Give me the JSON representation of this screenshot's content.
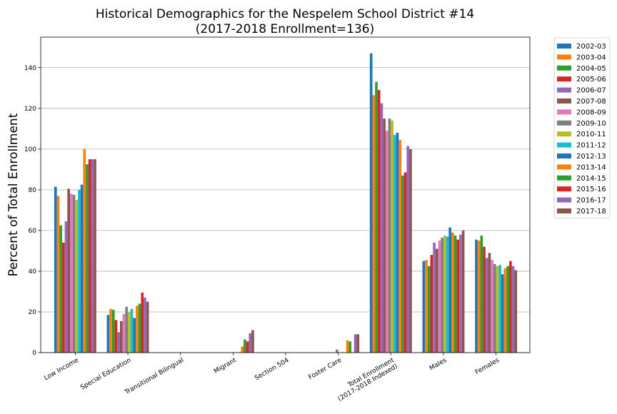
{
  "chart_data": {
    "type": "bar",
    "title": "Historical Demographics for the Nespelem School District #14",
    "subtitle": "(2017-2018 Enrollment=136)",
    "xlabel": "",
    "ylabel": "Percent of Total Enrollment",
    "ylim": [
      0,
      155
    ],
    "yticks": [
      "0",
      "20",
      "40",
      "60",
      "80",
      "100",
      "120",
      "140"
    ],
    "grid": "horizontal",
    "legend_position": "outside-right",
    "categories": [
      "Low Income",
      "Special Education",
      "Transitional Bilingual",
      "Migrant",
      "Section 504",
      "Foster Care",
      "Total Enrollment\n(2017-2018 Indexed)",
      "Males",
      "Females"
    ],
    "series": [
      {
        "name": "2002-03",
        "color": "#1f77b4",
        "values": [
          81.5,
          18.5,
          0,
          0,
          0,
          0,
          147,
          45,
          55.5
        ]
      },
      {
        "name": "2003-04",
        "color": "#ff7f0e",
        "values": [
          77,
          21.5,
          0,
          0,
          0,
          0,
          126.5,
          45.5,
          55
        ]
      },
      {
        "name": "2004-05",
        "color": "#2ca02c",
        "values": [
          62.5,
          21,
          0,
          0,
          0,
          0,
          133,
          42.5,
          57.5
        ]
      },
      {
        "name": "2005-06",
        "color": "#d62728",
        "values": [
          54,
          16,
          0,
          0,
          0,
          0,
          129,
          48,
          52
        ]
      },
      {
        "name": "2006-07",
        "color": "#9467bd",
        "values": [
          64.5,
          10,
          0,
          0,
          0,
          0,
          122.5,
          54,
          46.5
        ]
      },
      {
        "name": "2007-08",
        "color": "#8c564b",
        "values": [
          80.5,
          15.5,
          0,
          0,
          0,
          0,
          115,
          51,
          49
        ]
      },
      {
        "name": "2008-09",
        "color": "#e377c2",
        "values": [
          78,
          19,
          0,
          0,
          0,
          0,
          109,
          55,
          45.5
        ]
      },
      {
        "name": "2009-10",
        "color": "#7f7f7f",
        "values": [
          77.5,
          22.5,
          0,
          0,
          0,
          1.5,
          115,
          56.5,
          43.5
        ]
      },
      {
        "name": "2010-11",
        "color": "#bcbd22",
        "values": [
          75,
          20,
          0,
          0,
          0,
          0,
          114,
          57.5,
          42.5
        ]
      },
      {
        "name": "2011-12",
        "color": "#17becf",
        "values": [
          80,
          21.5,
          0,
          0,
          0,
          0,
          107,
          57,
          43
        ]
      },
      {
        "name": "2012-13",
        "color": "#1f77b4",
        "values": [
          82.5,
          17,
          0,
          0,
          0,
          0,
          108,
          61.5,
          38.5
        ]
      },
      {
        "name": "2013-14",
        "color": "#ff7f0e",
        "values": [
          100,
          23,
          0,
          3,
          0,
          6,
          104.5,
          59,
          41.5
        ]
      },
      {
        "name": "2014-15",
        "color": "#2ca02c",
        "values": [
          92.5,
          24,
          0,
          6.5,
          0,
          5.5,
          87,
          57.5,
          42.5
        ]
      },
      {
        "name": "2015-16",
        "color": "#d62728",
        "values": [
          95,
          29.5,
          0,
          5.5,
          0,
          0,
          88.5,
          55.5,
          45
        ]
      },
      {
        "name": "2016-17",
        "color": "#9467bd",
        "values": [
          95,
          27,
          0,
          9.5,
          0,
          9,
          101.5,
          58,
          42.5
        ]
      },
      {
        "name": "2017-18",
        "color": "#8c564b",
        "values": [
          95,
          25,
          0,
          11,
          0,
          9,
          100,
          60,
          40.5
        ]
      }
    ]
  }
}
